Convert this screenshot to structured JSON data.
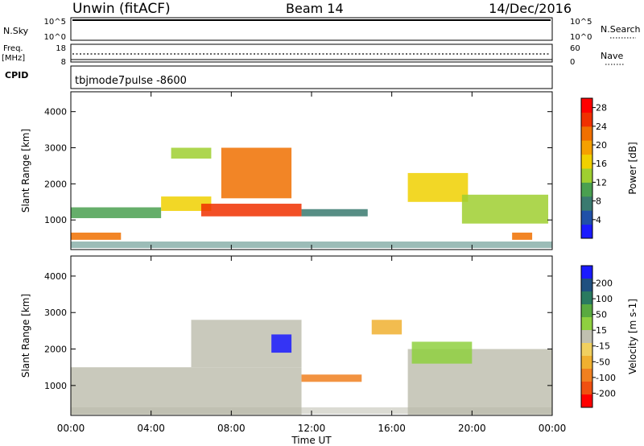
{
  "header": {
    "radar": "Unwin (fitACF)",
    "beam": "Beam 14",
    "date": "14/Dec/2016"
  },
  "strips": {
    "nsky": {
      "label": "N.Sky",
      "ticks": [
        "10^5",
        "10^0"
      ],
      "right_label": "N.Search",
      "right_ticks": [
        "10^5",
        "10^0"
      ]
    },
    "freq": {
      "label_top": "Freq.",
      "label_bottom": "[MHz]",
      "ticks": [
        "18",
        "8"
      ],
      "right_label": "Nave",
      "right_ticks": [
        "60",
        "0"
      ]
    },
    "cpid": {
      "label": "CPID",
      "text": "tbjmode7pulse -8600"
    }
  },
  "colors": {
    "power": [
      "#1a1aff",
      "#2050a8",
      "#3a7a70",
      "#4aa050",
      "#9fcf30",
      "#f0d000",
      "#f5a000",
      "#f07000",
      "#f03000",
      "#ff0000"
    ],
    "velocity": [
      "#1a1aff",
      "#205080",
      "#2a7a60",
      "#5aaa40",
      "#8fd040",
      "#c0c0b0",
      "#f0d060",
      "#f0b030",
      "#f08020",
      "#f05010",
      "#ff0000"
    ]
  },
  "chart_data": [
    {
      "type": "heatmap",
      "name": "power-panel",
      "ylabel": "Slant Range [km]",
      "ylim": [
        180,
        4550
      ],
      "yticks": [
        "1000",
        "2000",
        "3000",
        "4000"
      ],
      "xticks": [
        "00:00",
        "04:00",
        "08:00",
        "12:00",
        "16:00",
        "20:00",
        "00:00"
      ],
      "xlim_hours": [
        0,
        24
      ],
      "colorbar": {
        "label": "Power [dB]",
        "ticks": [
          "4",
          "8",
          "12",
          "16",
          "20",
          "24",
          "28"
        ],
        "range": [
          0,
          30
        ]
      },
      "regions": [
        {
          "t0": 0.0,
          "t1": 4.5,
          "r0": 1050,
          "r1": 1350,
          "level": 10
        },
        {
          "t0": 0.0,
          "t1": 2.5,
          "r0": 450,
          "r1": 650,
          "level": 22
        },
        {
          "t0": 4.5,
          "t1": 7.0,
          "r0": 1250,
          "r1": 1650,
          "level": 15
        },
        {
          "t0": 6.5,
          "t1": 11.5,
          "r0": 1100,
          "r1": 1450,
          "level": 26
        },
        {
          "t0": 7.5,
          "t1": 11.0,
          "r0": 1600,
          "r1": 3000,
          "level": 22
        },
        {
          "t0": 5.0,
          "t1": 7.0,
          "r0": 2700,
          "r1": 3000,
          "level": 12
        },
        {
          "t0": 11.5,
          "t1": 14.8,
          "r0": 1100,
          "r1": 1300,
          "level": 6
        },
        {
          "t0": 16.8,
          "t1": 19.8,
          "r0": 1500,
          "r1": 2300,
          "level": 17
        },
        {
          "t0": 19.5,
          "t1": 23.8,
          "r0": 900,
          "r1": 1700,
          "level": 14
        },
        {
          "t0": 22.0,
          "t1": 23.0,
          "r0": 450,
          "r1": 650,
          "level": 24
        }
      ]
    },
    {
      "type": "heatmap",
      "name": "velocity-panel",
      "ylabel": "Slant Range [km]",
      "ylim": [
        180,
        4550
      ],
      "yticks": [
        "1000",
        "2000",
        "3000",
        "4000"
      ],
      "xticks": [
        "00:00",
        "04:00",
        "08:00",
        "12:00",
        "16:00",
        "20:00",
        "00:00"
      ],
      "xlim_hours": [
        0,
        24
      ],
      "xlabel": "Time UT",
      "colorbar": {
        "label": "Velocity [m s-1]",
        "ticks": [
          "200",
          "100",
          "50",
          "15",
          "-15",
          "-50",
          "-100",
          "-200"
        ]
      },
      "regions": [
        {
          "t0": 0.0,
          "t1": 11.5,
          "r0": 200,
          "r1": 1500,
          "level": "-15"
        },
        {
          "t0": 6.0,
          "t1": 11.5,
          "r0": 1500,
          "r1": 2800,
          "level": "-15"
        },
        {
          "t0": 10.0,
          "t1": 11.0,
          "r0": 1900,
          "r1": 2400,
          "level": "200"
        },
        {
          "t0": 11.5,
          "t1": 14.5,
          "r0": 1100,
          "r1": 1300,
          "level": "-100"
        },
        {
          "t0": 15.0,
          "t1": 16.5,
          "r0": 2400,
          "r1": 2800,
          "level": "-50"
        },
        {
          "t0": 16.8,
          "t1": 24.0,
          "r0": 200,
          "r1": 2000,
          "level": "-15"
        },
        {
          "t0": 17.0,
          "t1": 20.0,
          "r0": 1600,
          "r1": 2200,
          "level": "15"
        }
      ]
    }
  ]
}
